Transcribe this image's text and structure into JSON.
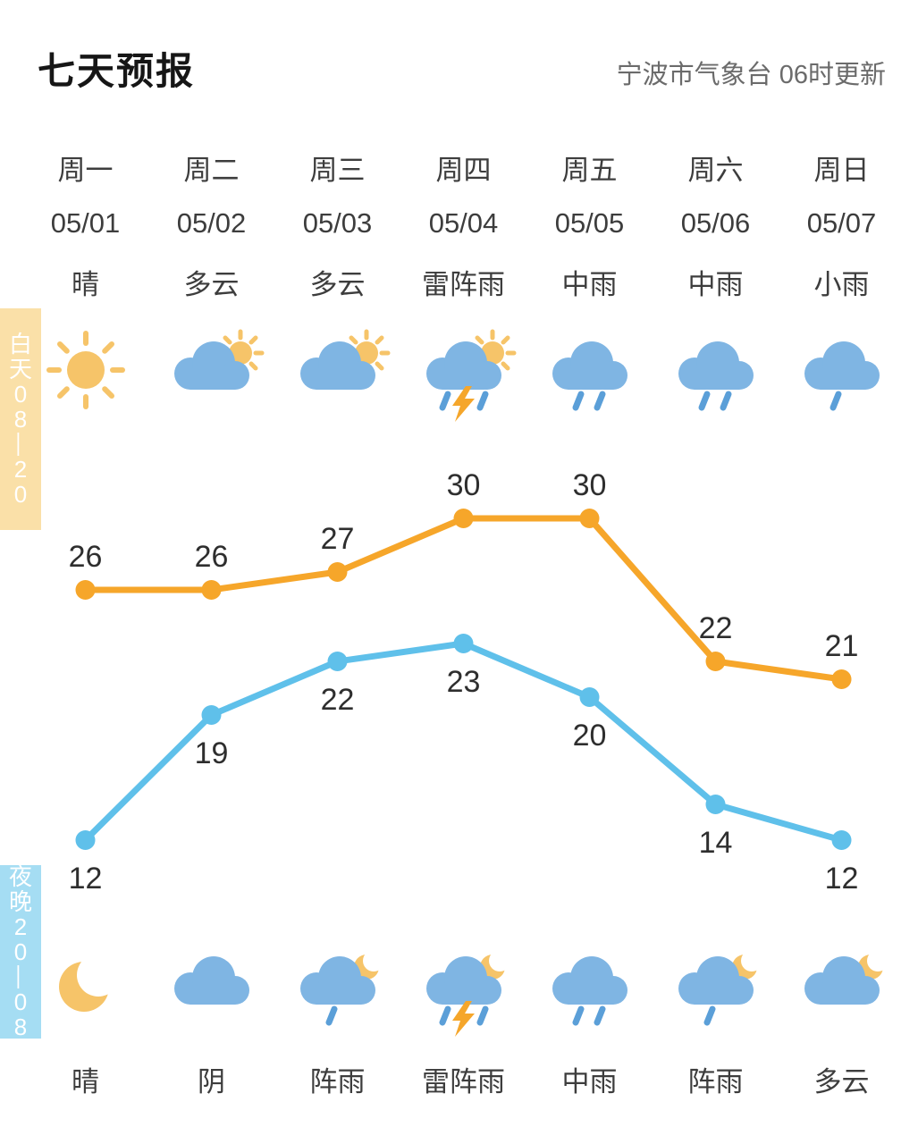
{
  "header": {
    "title": "七天预报",
    "source": "宁波市气象台 06时更新"
  },
  "side_labels": {
    "day": "白天08—20",
    "night": "夜晚20—08"
  },
  "days": [
    {
      "week": "周一",
      "date": "05/01",
      "day_condition": "晴",
      "day_icon": "sun",
      "night_condition": "晴",
      "night_icon": "moon"
    },
    {
      "week": "周二",
      "date": "05/02",
      "day_condition": "多云",
      "day_icon": "cloud-sun",
      "night_condition": "阴",
      "night_icon": "cloud"
    },
    {
      "week": "周三",
      "date": "05/03",
      "day_condition": "多云",
      "day_icon": "cloud-sun",
      "night_condition": "阵雨",
      "night_icon": "rain-1-moon"
    },
    {
      "week": "周四",
      "date": "05/04",
      "day_condition": "雷阵雨",
      "day_icon": "thunder-rain-sun",
      "night_condition": "雷阵雨",
      "night_icon": "thunder-rain-moon"
    },
    {
      "week": "周五",
      "date": "05/05",
      "day_condition": "中雨",
      "day_icon": "rain-2",
      "night_condition": "中雨",
      "night_icon": "rain-2"
    },
    {
      "week": "周六",
      "date": "05/06",
      "day_condition": "中雨",
      "day_icon": "rain-2",
      "night_condition": "阵雨",
      "night_icon": "rain-1-moon"
    },
    {
      "week": "周日",
      "date": "05/07",
      "day_condition": "小雨",
      "day_icon": "rain-1",
      "night_condition": "多云",
      "night_icon": "cloud-moon"
    }
  ],
  "chart_data": {
    "type": "line",
    "categories": [
      "周一",
      "周二",
      "周三",
      "周四",
      "周五",
      "周六",
      "周日"
    ],
    "series": [
      {
        "name": "day-high-temp",
        "color": "#F6A62A",
        "label_position": "above",
        "values": [
          26,
          26,
          27,
          30,
          30,
          22,
          21
        ]
      },
      {
        "name": "night-low-temp",
        "color": "#5FC0EA",
        "label_position": "below",
        "values": [
          12,
          19,
          22,
          23,
          20,
          14,
          12
        ]
      }
    ],
    "title": "",
    "xlabel": "",
    "ylabel": "",
    "unit": "°C",
    "ylim": [
      12,
      30
    ],
    "grid": false,
    "legend": "none"
  },
  "colors": {
    "high_line": "#F6A62A",
    "low_line": "#5FC0EA",
    "sun": "#F6C469",
    "cloud": "#7FB5E3",
    "drop": "#5B9FD8",
    "bolt": "#F5A62B",
    "day_strip_bg": "#FAE0A8",
    "night_strip_bg": "#A5DDF3",
    "value_label": "#2E2E2E"
  }
}
